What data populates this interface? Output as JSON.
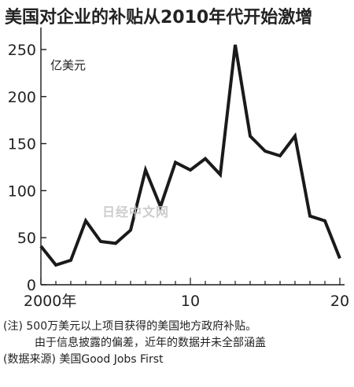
{
  "title": "美国对企业的补贴从2010年代开始激增",
  "watermark": "日经中文网",
  "notes": {
    "note": "(注) 500万美元以上项目获得的美国地方政府补贴。",
    "note_cont": "由于信息披露的偏差，近年的数据并未全部涵盖",
    "source": "(数据来源) 美国Good Jobs First"
  },
  "chart_data": {
    "type": "line",
    "title": "美国对企业的补贴从2010年代开始激增",
    "ylabel": "亿美元",
    "xlabel": "",
    "x": [
      2000,
      2001,
      2002,
      2003,
      2004,
      2005,
      2006,
      2007,
      2008,
      2009,
      2010,
      2011,
      2012,
      2013,
      2014,
      2015,
      2016,
      2017,
      2018,
      2019,
      2020
    ],
    "values": [
      41,
      21,
      26,
      68,
      46,
      44,
      58,
      122,
      83,
      130,
      122,
      134,
      117,
      255,
      158,
      142,
      137,
      158,
      73,
      68,
      28
    ],
    "xlim": [
      2000,
      2020
    ],
    "ylim": [
      0,
      260
    ],
    "yticks": [
      "0",
      "50",
      "100",
      "150",
      "200",
      "250"
    ],
    "xticks": [
      "2000年",
      "10",
      "20"
    ],
    "grid": false,
    "colors": {
      "line": "#1a1a1a",
      "axis": "#1a1a1a"
    }
  }
}
